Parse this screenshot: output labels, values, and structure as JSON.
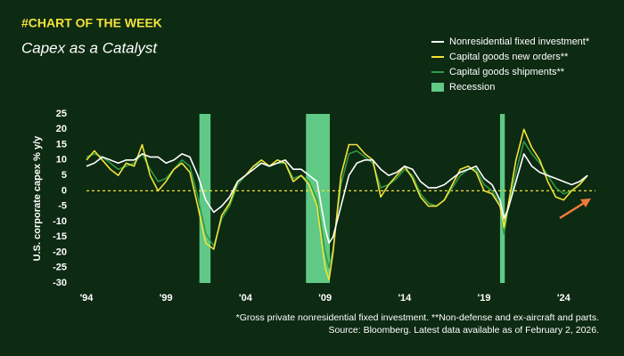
{
  "chart_data": {
    "type": "line",
    "brand": "#CHART OF THE WEEK",
    "title": "Capex as a Catalyst",
    "y_label": "U.S. corporate capex % y/y",
    "notes": [
      "*Gross private nonresidential fixed investment. **Non-defense and ex-aircraft and parts.",
      "Source: Bloomberg. Latest data available as of February 2, 2026."
    ],
    "xlim": [
      1994,
      2026
    ],
    "ylim": [
      -30,
      25
    ],
    "xticks": [
      {
        "value": 1994,
        "label": "'94"
      },
      {
        "value": 1999,
        "label": "'99"
      },
      {
        "value": 2004,
        "label": "'04"
      },
      {
        "value": 2009,
        "label": "'09"
      },
      {
        "value": 2014,
        "label": "'14"
      },
      {
        "value": 2019,
        "label": "'19"
      },
      {
        "value": 2024,
        "label": "'24"
      }
    ],
    "yticks": [
      25,
      20,
      15,
      10,
      5,
      0,
      -5,
      -10,
      -15,
      -20,
      -25,
      -30
    ],
    "zero_line_color": "#f2e33a",
    "recession": {
      "name": "Recession",
      "color": "#5fc985",
      "periods": [
        [
          2001.1,
          2001.8
        ],
        [
          2007.8,
          2009.3
        ],
        [
          2020.0,
          2020.3
        ]
      ]
    },
    "x": [
      1994,
      1994.5,
      1995,
      1995.5,
      1996,
      1996.5,
      1997,
      1997.5,
      1998,
      1998.5,
      1999,
      1999.5,
      2000,
      2000.5,
      2001,
      2001.5,
      2002,
      2002.5,
      2003,
      2003.5,
      2004,
      2004.5,
      2005,
      2005.5,
      2006,
      2006.5,
      2007,
      2007.5,
      2008,
      2008.5,
      2009,
      2009.25,
      2009.5,
      2010,
      2010.5,
      2011,
      2011.5,
      2012,
      2012.5,
      2013,
      2013.5,
      2014,
      2014.5,
      2015,
      2015.5,
      2016,
      2016.5,
      2017,
      2017.5,
      2018,
      2018.5,
      2019,
      2019.5,
      2020,
      2020.25,
      2020.5,
      2021,
      2021.5,
      2022,
      2022.5,
      2023,
      2023.5,
      2024,
      2024.5,
      2025,
      2025.5
    ],
    "series": [
      {
        "name": "Nonresidential fixed investment*",
        "color": "#ffffff",
        "values": [
          8,
          9,
          11,
          10,
          9,
          10,
          10,
          12,
          11,
          11,
          9,
          10,
          12,
          11,
          5,
          -3,
          -7,
          -5,
          -2,
          3,
          5,
          7,
          9,
          8,
          9,
          10,
          7,
          7,
          5,
          3,
          -12,
          -17,
          -15,
          -5,
          5,
          9,
          10,
          10,
          7,
          5,
          6,
          8,
          7,
          3,
          1,
          1,
          2,
          4,
          6,
          7,
          8,
          4,
          2,
          -3,
          -9,
          -6,
          3,
          12,
          8,
          6,
          5,
          4,
          3,
          2,
          3,
          5
        ]
      },
      {
        "name": "Capital goods new orders**",
        "color": "#f2e33a",
        "values": [
          10,
          13,
          10,
          7,
          5,
          9,
          8,
          15,
          5,
          0,
          3,
          7,
          9,
          6,
          -5,
          -17,
          -19,
          -8,
          -4,
          3,
          5,
          8,
          10,
          8,
          10,
          9,
          3,
          5,
          2,
          -5,
          -25,
          -29,
          -20,
          5,
          15,
          15,
          12,
          10,
          -2,
          2,
          5,
          8,
          4,
          -2,
          -5,
          -5,
          -3,
          2,
          7,
          8,
          6,
          0,
          -1,
          -5,
          -12,
          -5,
          10,
          20,
          14,
          10,
          3,
          -2,
          -3,
          0,
          2,
          5
        ]
      },
      {
        "name": "Capital goods shipments**",
        "color": "#2f9a43",
        "values": [
          11,
          12,
          11,
          9,
          7,
          8,
          9,
          12,
          7,
          3,
          4,
          7,
          10,
          8,
          -2,
          -14,
          -18,
          -9,
          -5,
          2,
          5,
          8,
          9,
          8,
          9,
          9,
          4,
          5,
          3,
          -3,
          -20,
          -25,
          -19,
          2,
          12,
          13,
          11,
          9,
          1,
          2,
          4,
          7,
          5,
          -1,
          -4,
          -5,
          -3,
          1,
          5,
          7,
          7,
          2,
          0,
          -4,
          -14,
          -6,
          6,
          16,
          12,
          9,
          5,
          1,
          -1,
          0,
          2,
          5
        ]
      }
    ]
  }
}
